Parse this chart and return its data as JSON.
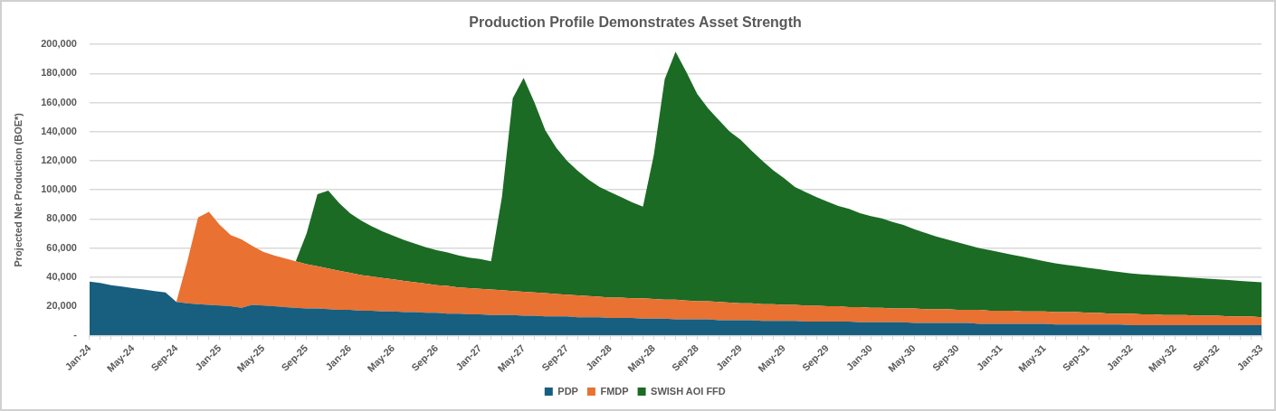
{
  "chart_data": {
    "type": "area",
    "title": "Production Profile Demonstrates Asset Strength",
    "ylabel": "Projected Net Production (BOE*)",
    "categories": [
      "Jan-24",
      null,
      null,
      null,
      "May-24",
      null,
      null,
      null,
      "Sep-24",
      null,
      null,
      null,
      "Jan-25",
      null,
      null,
      null,
      "May-25",
      null,
      null,
      null,
      "Sep-25",
      null,
      null,
      null,
      "Jan-26",
      null,
      null,
      null,
      "May-26",
      null,
      null,
      null,
      "Sep-26",
      null,
      null,
      null,
      "Jan-27",
      null,
      null,
      null,
      "May-27",
      null,
      null,
      null,
      "Sep-27",
      null,
      null,
      null,
      "Jan-28",
      null,
      null,
      null,
      "May-28",
      null,
      null,
      null,
      "Sep-28",
      null,
      null,
      null,
      "Jan-29",
      null,
      null,
      null,
      "May-29",
      null,
      null,
      null,
      "Sep-29",
      null,
      null,
      null,
      "Jan-30",
      null,
      null,
      null,
      "May-30",
      null,
      null,
      null,
      "Sep-30",
      null,
      null,
      null,
      "Jan-31",
      null,
      null,
      null,
      "May-31",
      null,
      null,
      null,
      "Sep-31",
      null,
      null,
      null,
      "Jan-32",
      null,
      null,
      null,
      "May-32",
      null,
      null,
      null,
      "Sep-32",
      null,
      null,
      null,
      "Jan-33"
    ],
    "series": [
      {
        "name": "PDP",
        "color": "#175e7f",
        "values": [
          37000,
          36000,
          34500,
          33500,
          32500,
          31500,
          30500,
          29500,
          23000,
          22000,
          21500,
          21000,
          20500,
          20000,
          19000,
          21000,
          20500,
          20000,
          19500,
          19000,
          18500,
          18500,
          18000,
          17500,
          17500,
          17000,
          17000,
          16500,
          16500,
          16000,
          16000,
          15500,
          15500,
          15000,
          15000,
          14500,
          14500,
          14000,
          14000,
          14000,
          13500,
          13500,
          13000,
          13000,
          13000,
          12500,
          12500,
          12500,
          12000,
          12000,
          12000,
          11500,
          11500,
          11500,
          11000,
          11000,
          11000,
          11000,
          10500,
          10500,
          10500,
          10500,
          10000,
          10000,
          10000,
          10000,
          9500,
          9500,
          9500,
          9500,
          9500,
          9000,
          9000,
          9000,
          9000,
          9000,
          8500,
          8500,
          8500,
          8500,
          8500,
          8500,
          8000,
          8000,
          8000,
          8000,
          8000,
          8000,
          8000,
          7500,
          7500,
          7500,
          7500,
          7500,
          7500,
          7500,
          7000,
          7000,
          7000,
          7000,
          7000,
          7000,
          7000,
          7000,
          7000,
          7000,
          7000,
          7000,
          7000
        ]
      },
      {
        "name": "FMDP",
        "color": "#e97132",
        "values": [
          null,
          null,
          null,
          null,
          null,
          null,
          null,
          null,
          0,
          28500,
          59500,
          64000,
          55500,
          49000,
          47000,
          40500,
          37000,
          35000,
          33500,
          32000,
          30500,
          29000,
          28000,
          27000,
          25500,
          24500,
          23500,
          23000,
          22000,
          21500,
          20500,
          20000,
          19000,
          19000,
          18000,
          18000,
          17500,
          17500,
          17000,
          16500,
          16500,
          16000,
          16000,
          15500,
          15000,
          15000,
          14500,
          14000,
          14000,
          14000,
          13500,
          14000,
          13500,
          13000,
          13500,
          13000,
          12500,
          12500,
          12500,
          12000,
          11500,
          11500,
          11500,
          11500,
          11000,
          11000,
          11000,
          11000,
          10500,
          10500,
          10000,
          10500,
          10000,
          10000,
          9500,
          9500,
          10000,
          9500,
          9500,
          9500,
          9000,
          9000,
          9500,
          9000,
          9000,
          9000,
          8500,
          8500,
          8500,
          8500,
          8500,
          8500,
          8000,
          8000,
          7500,
          7500,
          8000,
          7500,
          7500,
          7000,
          7000,
          7000,
          6500,
          6500,
          6500,
          6000,
          6000,
          6000,
          5500
        ]
      },
      {
        "name": "SWISH AOI FFD",
        "color": "#1b6b24",
        "values": [
          null,
          null,
          null,
          null,
          null,
          null,
          null,
          null,
          null,
          null,
          null,
          null,
          null,
          null,
          null,
          null,
          null,
          null,
          null,
          0,
          21000,
          49500,
          53500,
          46500,
          41000,
          37500,
          34500,
          32000,
          30000,
          28000,
          26500,
          25000,
          24000,
          23000,
          22000,
          21000,
          20500,
          19500,
          64000,
          132500,
          147000,
          130500,
          112000,
          100500,
          92000,
          85500,
          80000,
          75500,
          72500,
          69000,
          66000,
          63000,
          99000,
          151500,
          170500,
          157000,
          142500,
          132500,
          125000,
          117500,
          112500,
          105000,
          98500,
          92000,
          87000,
          81000,
          78000,
          74500,
          72000,
          69000,
          67500,
          64500,
          63000,
          61500,
          59500,
          57500,
          54500,
          52500,
          50000,
          48000,
          46500,
          44500,
          42500,
          41500,
          40000,
          38500,
          37500,
          36000,
          34500,
          33500,
          32500,
          31500,
          31000,
          30000,
          29500,
          28500,
          27500,
          27500,
          27000,
          27000,
          26500,
          26000,
          26000,
          25500,
          25000,
          25000,
          24500,
          24000,
          24000
        ]
      }
    ],
    "stacked": true,
    "ylim": [
      0,
      200000
    ],
    "yticks": [
      {
        "value": 0,
        "label": "-"
      },
      {
        "value": 20000,
        "label": "20,000"
      },
      {
        "value": 40000,
        "label": "40,000"
      },
      {
        "value": 60000,
        "label": "60,000"
      },
      {
        "value": 80000,
        "label": "80,000"
      },
      {
        "value": 100000,
        "label": "100,000"
      },
      {
        "value": 120000,
        "label": "120,000"
      },
      {
        "value": 140000,
        "label": "140,000"
      },
      {
        "value": 160000,
        "label": "160,000"
      },
      {
        "value": 180000,
        "label": "180,000"
      },
      {
        "value": 200000,
        "label": "200,000"
      }
    ],
    "grid": "y",
    "legend": "bottom"
  }
}
